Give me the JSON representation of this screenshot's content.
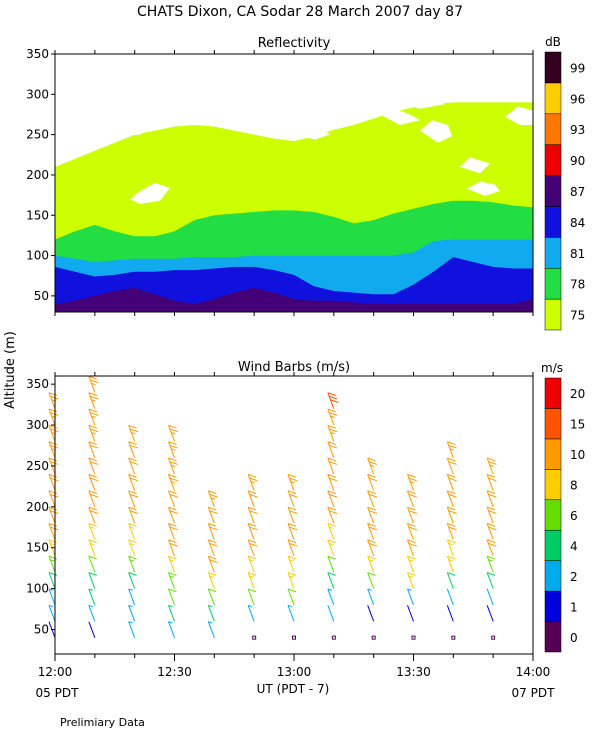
{
  "page": {
    "title": "CHATS Dixon, CA   Sodar   28 March 2007   day   87",
    "footnote": "Prelimiary Data",
    "shared_ylabel": "Altitude  (m)",
    "xlabel": "UT  (PDT - 7)",
    "left_time_note": "05 PDT",
    "right_time_note": "07 PDT"
  },
  "chart_data": [
    {
      "type": "contour",
      "title": "Reflectivity",
      "ylabel": "Altitude  (m)",
      "x_ticks": [
        "12:00",
        "12:30",
        "13:00",
        "13:30",
        "14:00"
      ],
      "y_ticks": [
        50,
        100,
        150,
        200,
        250,
        300,
        350
      ],
      "ylim": [
        30,
        350
      ],
      "colorbar": {
        "unit": "dB",
        "levels": [
          75,
          78,
          81,
          84,
          87,
          90,
          93,
          96,
          99
        ],
        "colors": [
          "#ccff00",
          "#22dd44",
          "#11aaee",
          "#1111dd",
          "#440077",
          "#ee0000",
          "#ff7700",
          "#ffcc00",
          "#330022"
        ]
      },
      "columns_time": [
        "12:00",
        "12:05",
        "12:10",
        "12:15",
        "12:20",
        "12:25",
        "12:30",
        "12:35",
        "12:40",
        "12:45",
        "12:50",
        "12:55",
        "13:00",
        "13:05",
        "13:10",
        "13:15",
        "13:20",
        "13:25",
        "13:30",
        "13:35",
        "13:40",
        "13:45",
        "13:50",
        "13:55",
        "14:00"
      ],
      "level_tops_m": {
        "87": [
          40,
          44,
          50,
          56,
          60,
          52,
          44,
          40,
          46,
          54,
          60,
          54,
          46,
          44,
          44,
          42,
          40,
          40,
          40,
          40,
          40,
          40,
          40,
          40,
          46
        ],
        "84": [
          86,
          80,
          74,
          76,
          80,
          80,
          82,
          82,
          84,
          86,
          86,
          82,
          76,
          62,
          56,
          54,
          52,
          52,
          64,
          80,
          98,
          92,
          86,
          84,
          84
        ],
        "81": [
          100,
          96,
          92,
          94,
          96,
          96,
          96,
          98,
          98,
          98,
          100,
          100,
          100,
          100,
          100,
          100,
          100,
          100,
          104,
          118,
          120,
          120,
          120,
          120,
          120
        ],
        "78": [
          120,
          130,
          138,
          130,
          124,
          124,
          130,
          144,
          150,
          152,
          154,
          156,
          156,
          154,
          148,
          140,
          144,
          152,
          158,
          164,
          168,
          168,
          166,
          162,
          160
        ],
        "75": [
          210,
          220,
          230,
          240,
          250,
          255,
          260,
          262,
          260,
          255,
          250,
          245,
          242,
          248,
          256,
          262,
          270,
          278,
          284,
          288,
          290,
          290,
          290,
          290,
          290
        ]
      },
      "white_area": "above 75 dB contour and isolated patches"
    },
    {
      "type": "wind_barbs",
      "title": "Wind Barbs (m/s)",
      "ylabel": "Altitude  (m)",
      "xlabel": "UT  (PDT - 7)",
      "x_ticks": [
        "12:00",
        "12:30",
        "13:00",
        "13:30",
        "14:00"
      ],
      "y_ticks": [
        50,
        100,
        150,
        200,
        250,
        300,
        350
      ],
      "ylim": [
        20,
        360
      ],
      "colorbar": {
        "unit": "m/s",
        "labels": [
          0,
          1,
          2,
          4,
          6,
          8,
          10,
          15,
          20
        ],
        "colors": [
          "#550055",
          "#0000dd",
          "#00aaee",
          "#00cc66",
          "#66dd00",
          "#ffcc00",
          "#ff9900",
          "#ff5500",
          "#ee0000"
        ]
      },
      "profiles": [
        {
          "time": "12:00",
          "max_alt": 320,
          "speed_profile": [
            1.5,
            4,
            9,
            11,
            12,
            13,
            14
          ]
        },
        {
          "time": "12:10",
          "max_alt": 350,
          "speed_profile": [
            1.5,
            5,
            9,
            11,
            12,
            13,
            15
          ]
        },
        {
          "time": "12:20",
          "max_alt": 290,
          "speed_profile": [
            2.5,
            4,
            8,
            10,
            11,
            12,
            13
          ]
        },
        {
          "time": "12:30",
          "max_alt": 280,
          "speed_profile": [
            2.5,
            6,
            9,
            11,
            12,
            13,
            14
          ]
        },
        {
          "time": "12:40",
          "max_alt": 200,
          "speed_profile": [
            2.5,
            5,
            8,
            10,
            11,
            12,
            13
          ]
        },
        {
          "time": "12:50",
          "max_alt": 220,
          "speed_profile": [
            0.5,
            5,
            8,
            10,
            11,
            12,
            13
          ]
        },
        {
          "time": "13:00",
          "max_alt": 220,
          "speed_profile": [
            0.5,
            5,
            8,
            10,
            11,
            12,
            13
          ]
        },
        {
          "time": "13:10",
          "max_alt": 320,
          "speed_profile": [
            0.5,
            4,
            8,
            10,
            11,
            12,
            16
          ]
        },
        {
          "time": "13:20",
          "max_alt": 240,
          "speed_profile": [
            0.5,
            1.5,
            8,
            10,
            11,
            12,
            13
          ]
        },
        {
          "time": "13:30",
          "max_alt": 220,
          "speed_profile": [
            0.5,
            1.5,
            8,
            10,
            11,
            12,
            13
          ]
        },
        {
          "time": "13:40",
          "max_alt": 260,
          "speed_profile": [
            0.5,
            1.5,
            8,
            10,
            11,
            12,
            13
          ]
        },
        {
          "time": "13:50",
          "max_alt": 240,
          "speed_profile": [
            0.5,
            1.5,
            6,
            10,
            11,
            12,
            13
          ]
        }
      ],
      "direction_note": "barbs tilted, wind mostly from south-southwest"
    }
  ]
}
